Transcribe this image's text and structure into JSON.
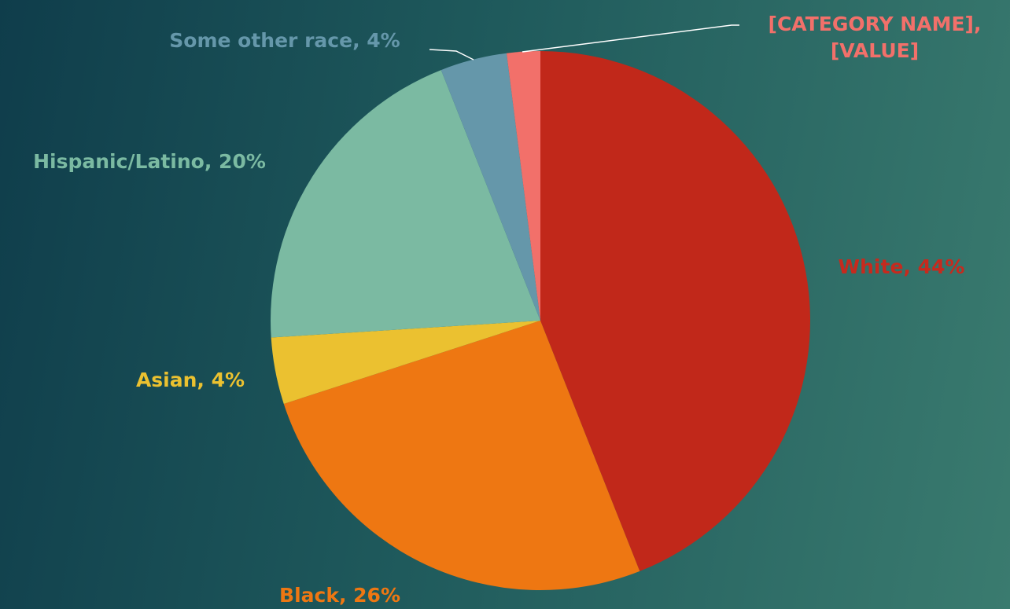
{
  "chart_data": {
    "type": "pie",
    "values": [
      44,
      26,
      4,
      20,
      4,
      2
    ],
    "value_labels": [
      "White, 44%",
      "Black, 26%",
      "Asian, 4%",
      "Hispanic/Latino, 20%",
      "Some other race, 4%",
      "[CATEGORY NAME], [VALUE]"
    ],
    "colors": [
      "#c1281a",
      "#ee7712",
      "#ebc130",
      "#7bbaa2",
      "#6597aa",
      "#f2706a"
    ],
    "label_colors": [
      "#c62a1e",
      "#ee7712",
      "#ebc130",
      "#7bbaa2",
      "#6597aa",
      "#f2706a"
    ]
  }
}
